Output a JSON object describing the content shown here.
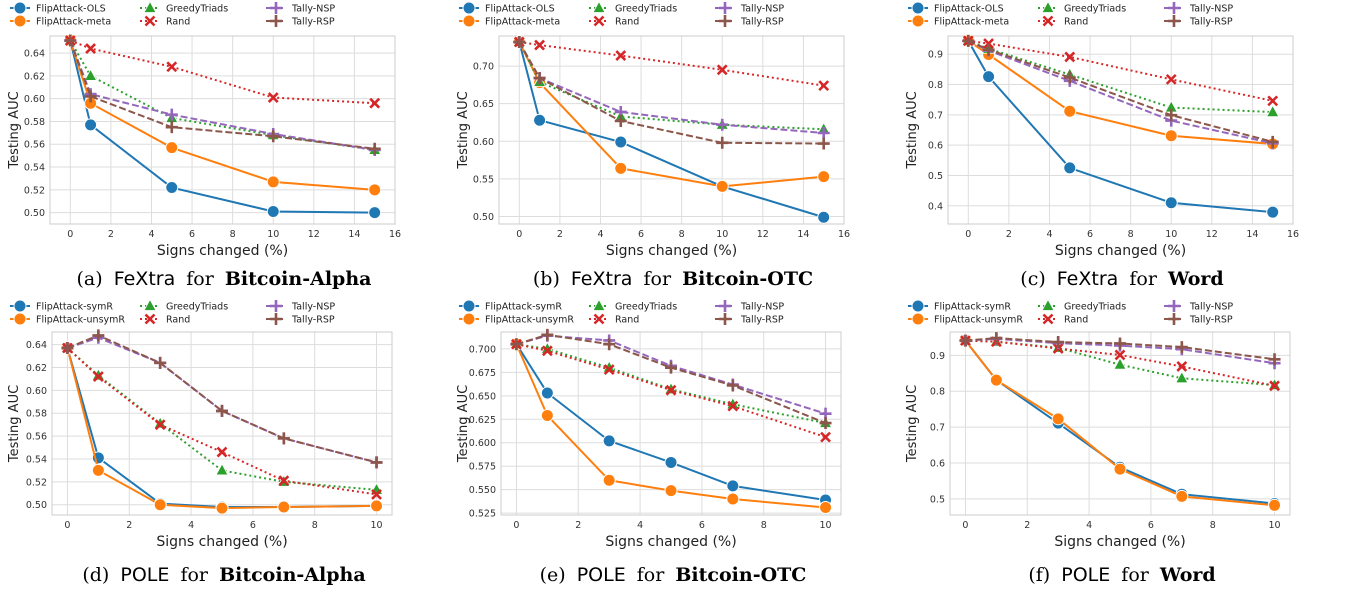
{
  "colors": {
    "FlipAttack-OLS": "#1f77b4",
    "FlipAttack-meta": "#ff7f0e",
    "FlipAttack-symR": "#1f77b4",
    "FlipAttack-unsymR": "#ff7f0e",
    "GreedyTriads": "#2ca02c",
    "Rand": "#d62728",
    "Tally-NSP": "#9467bd",
    "Tally-RSP": "#8c564b",
    "grid": "#dddddd",
    "axes_bg": "#ffffff"
  },
  "chart_data": [
    {
      "type": "line",
      "caption": {
        "label": "(a)",
        "method": "FeXtra",
        "for": "for",
        "dataset": "Bitcoin-Alpha"
      },
      "xlabel": "Signs changed (%)",
      "ylabel": "Testing AUC",
      "xlim": [
        -1,
        16
      ],
      "ylim": [
        0.49,
        0.655
      ],
      "xticks": [
        0,
        2,
        4,
        6,
        8,
        10,
        12,
        14,
        16
      ],
      "yticks": [
        0.5,
        0.52,
        0.54,
        0.56,
        0.58,
        0.6,
        0.62,
        0.64
      ],
      "ytick_labels": [
        "0.50",
        "0.52",
        "0.54",
        "0.56",
        "0.58",
        "0.60",
        "0.62",
        "0.64"
      ],
      "grid": true,
      "legend": "above",
      "series": [
        {
          "name": "FlipAttack-OLS",
          "marker": "circle",
          "dash": "solid",
          "x": [
            0,
            1,
            5,
            10,
            15
          ],
          "y": [
            0.651,
            0.577,
            0.522,
            0.501,
            0.5
          ]
        },
        {
          "name": "FlipAttack-meta",
          "marker": "circle",
          "dash": "solid",
          "x": [
            0,
            1,
            5,
            10,
            15
          ],
          "y": [
            0.651,
            0.596,
            0.557,
            0.527,
            0.52
          ]
        },
        {
          "name": "GreedyTriads",
          "marker": "triangle",
          "dash": "dotted",
          "x": [
            0,
            1,
            5,
            10,
            15
          ],
          "y": [
            0.651,
            0.62,
            0.583,
            0.568,
            0.555
          ]
        },
        {
          "name": "Rand",
          "marker": "x",
          "dash": "dotted",
          "x": [
            0,
            1,
            5,
            10,
            15
          ],
          "y": [
            0.651,
            0.644,
            0.628,
            0.601,
            0.596
          ]
        },
        {
          "name": "Tally-NSP",
          "marker": "plus",
          "dash": "dashed",
          "x": [
            0,
            1,
            5,
            10,
            15
          ],
          "y": [
            0.651,
            0.604,
            0.586,
            0.569,
            0.555
          ]
        },
        {
          "name": "Tally-RSP",
          "marker": "plus",
          "dash": "dashed",
          "x": [
            0,
            1,
            5,
            10,
            15
          ],
          "y": [
            0.651,
            0.602,
            0.575,
            0.567,
            0.556
          ]
        }
      ]
    },
    {
      "type": "line",
      "caption": {
        "label": "(b)",
        "method": "FeXtra",
        "for": "for",
        "dataset": "Bitcoin-OTC"
      },
      "xlabel": "Signs changed (%)",
      "ylabel": "Testing AUC",
      "xlim": [
        -1,
        16
      ],
      "ylim": [
        0.49,
        0.74
      ],
      "xticks": [
        0,
        2,
        4,
        6,
        8,
        10,
        12,
        14,
        16
      ],
      "yticks": [
        0.5,
        0.55,
        0.6,
        0.65,
        0.7
      ],
      "ytick_labels": [
        "0.50",
        "0.55",
        "0.60",
        "0.65",
        "0.70"
      ],
      "grid": true,
      "legend": "above",
      "series": [
        {
          "name": "FlipAttack-OLS",
          "marker": "circle",
          "dash": "solid",
          "x": [
            0,
            1,
            5,
            10,
            15
          ],
          "y": [
            0.732,
            0.628,
            0.599,
            0.54,
            0.499
          ]
        },
        {
          "name": "FlipAttack-meta",
          "marker": "circle",
          "dash": "solid",
          "x": [
            0,
            1,
            5,
            10,
            15
          ],
          "y": [
            0.732,
            0.678,
            0.564,
            0.54,
            0.553
          ]
        },
        {
          "name": "GreedyTriads",
          "marker": "triangle",
          "dash": "dotted",
          "x": [
            0,
            1,
            5,
            10,
            15
          ],
          "y": [
            0.732,
            0.679,
            0.633,
            0.622,
            0.616
          ]
        },
        {
          "name": "Rand",
          "marker": "x",
          "dash": "dotted",
          "x": [
            0,
            1,
            5,
            10,
            15
          ],
          "y": [
            0.732,
            0.728,
            0.714,
            0.695,
            0.674
          ]
        },
        {
          "name": "Tally-NSP",
          "marker": "plus",
          "dash": "dashed",
          "x": [
            0,
            1,
            5,
            10,
            15
          ],
          "y": [
            0.732,
            0.684,
            0.639,
            0.622,
            0.611
          ]
        },
        {
          "name": "Tally-RSP",
          "marker": "plus",
          "dash": "dashed",
          "x": [
            0,
            1,
            5,
            10,
            15
          ],
          "y": [
            0.732,
            0.684,
            0.627,
            0.598,
            0.597
          ]
        }
      ]
    },
    {
      "type": "line",
      "caption": {
        "label": "(c)",
        "method": "FeXtra",
        "for": "for",
        "dataset": "Word"
      },
      "xlabel": "Signs changed (%)",
      "ylabel": "Testing AUC",
      "xlim": [
        -1,
        16
      ],
      "ylim": [
        0.34,
        0.96
      ],
      "xticks": [
        0,
        2,
        4,
        6,
        8,
        10,
        12,
        14,
        16
      ],
      "yticks": [
        0.4,
        0.5,
        0.6,
        0.7,
        0.8,
        0.9
      ],
      "ytick_labels": [
        "0.4",
        "0.5",
        "0.6",
        "0.7",
        "0.8",
        "0.9"
      ],
      "grid": true,
      "legend": "above",
      "series": [
        {
          "name": "FlipAttack-OLS",
          "marker": "circle",
          "dash": "solid",
          "x": [
            0,
            1,
            5,
            10,
            15
          ],
          "y": [
            0.944,
            0.826,
            0.525,
            0.41,
            0.379
          ]
        },
        {
          "name": "FlipAttack-meta",
          "marker": "circle",
          "dash": "solid",
          "x": [
            0,
            1,
            5,
            10,
            15
          ],
          "y": [
            0.944,
            0.899,
            0.712,
            0.631,
            0.604
          ]
        },
        {
          "name": "GreedyTriads",
          "marker": "triangle",
          "dash": "dotted",
          "x": [
            0,
            1,
            5,
            10,
            15
          ],
          "y": [
            0.944,
            0.918,
            0.833,
            0.724,
            0.709
          ]
        },
        {
          "name": "Rand",
          "marker": "x",
          "dash": "dotted",
          "x": [
            0,
            1,
            5,
            10,
            15
          ],
          "y": [
            0.944,
            0.935,
            0.891,
            0.817,
            0.746
          ]
        },
        {
          "name": "Tally-NSP",
          "marker": "plus",
          "dash": "dashed",
          "x": [
            0,
            1,
            5,
            10,
            15
          ],
          "y": [
            0.944,
            0.912,
            0.812,
            0.681,
            0.606
          ]
        },
        {
          "name": "Tally-RSP",
          "marker": "plus",
          "dash": "dashed",
          "x": [
            0,
            1,
            5,
            10,
            15
          ],
          "y": [
            0.944,
            0.915,
            0.823,
            0.699,
            0.611
          ]
        }
      ]
    },
    {
      "type": "line",
      "caption": {
        "label": "(d)",
        "method": "POLE",
        "for": "for",
        "dataset": "Bitcoin-Alpha"
      },
      "xlabel": "Signs changed (%)",
      "ylabel": "Testing AUC",
      "xlim": [
        -0.5,
        10.5
      ],
      "ylim": [
        0.491,
        0.651
      ],
      "xticks": [
        0,
        2,
        4,
        6,
        8,
        10
      ],
      "yticks": [
        0.5,
        0.52,
        0.54,
        0.56,
        0.58,
        0.6,
        0.62,
        0.64
      ],
      "ytick_labels": [
        "0.50",
        "0.52",
        "0.54",
        "0.56",
        "0.58",
        "0.60",
        "0.62",
        "0.64"
      ],
      "grid": true,
      "legend": "above",
      "series": [
        {
          "name": "FlipAttack-symR",
          "marker": "circle",
          "dash": "solid",
          "x": [
            0,
            1,
            3,
            5,
            7,
            10
          ],
          "y": [
            0.637,
            0.541,
            0.501,
            0.498,
            0.498,
            0.499
          ]
        },
        {
          "name": "FlipAttack-unsymR",
          "marker": "circle",
          "dash": "solid",
          "x": [
            0,
            1,
            3,
            5,
            7,
            10
          ],
          "y": [
            0.637,
            0.53,
            0.5,
            0.497,
            0.498,
            0.499
          ]
        },
        {
          "name": "GreedyTriads",
          "marker": "triangle",
          "dash": "dotted",
          "x": [
            0,
            1,
            3,
            5,
            7,
            10
          ],
          "y": [
            0.637,
            0.613,
            0.571,
            0.53,
            0.52,
            0.513
          ]
        },
        {
          "name": "Rand",
          "marker": "x",
          "dash": "dotted",
          "x": [
            0,
            1,
            3,
            5,
            7,
            10
          ],
          "y": [
            0.637,
            0.612,
            0.57,
            0.546,
            0.521,
            0.509
          ]
        },
        {
          "name": "Tally-NSP",
          "marker": "plus",
          "dash": "dashed",
          "x": [
            0,
            1,
            3,
            5,
            7,
            10
          ],
          "y": [
            0.637,
            0.646,
            0.624,
            0.582,
            0.558,
            0.537
          ]
        },
        {
          "name": "Tally-RSP",
          "marker": "plus",
          "dash": "dashed",
          "x": [
            0,
            1,
            3,
            5,
            7,
            10
          ],
          "y": [
            0.637,
            0.648,
            0.624,
            0.582,
            0.558,
            0.537
          ]
        }
      ]
    },
    {
      "type": "line",
      "caption": {
        "label": "(e)",
        "method": "POLE",
        "for": "for",
        "dataset": "Bitcoin-OTC"
      },
      "xlabel": "Signs changed (%)",
      "ylabel": "Testing AUC",
      "xlim": [
        -0.5,
        10.5
      ],
      "ylim": [
        0.523,
        0.718
      ],
      "xticks": [
        0,
        2,
        4,
        6,
        8,
        10
      ],
      "yticks": [
        0.525,
        0.55,
        0.575,
        0.6,
        0.625,
        0.65,
        0.675,
        0.7
      ],
      "ytick_labels": [
        "0.525",
        "0.550",
        "0.575",
        "0.600",
        "0.625",
        "0.650",
        "0.675",
        "0.700"
      ],
      "grid": true,
      "legend": "above",
      "series": [
        {
          "name": "FlipAttack-symR",
          "marker": "circle",
          "dash": "solid",
          "x": [
            0,
            1,
            3,
            5,
            7,
            10
          ],
          "y": [
            0.705,
            0.653,
            0.602,
            0.579,
            0.554,
            0.539
          ]
        },
        {
          "name": "FlipAttack-unsymR",
          "marker": "circle",
          "dash": "solid",
          "x": [
            0,
            1,
            3,
            5,
            7,
            10
          ],
          "y": [
            0.705,
            0.629,
            0.56,
            0.549,
            0.54,
            0.531
          ]
        },
        {
          "name": "GreedyTriads",
          "marker": "triangle",
          "dash": "dotted",
          "x": [
            0,
            1,
            3,
            5,
            7,
            10
          ],
          "y": [
            0.705,
            0.7,
            0.68,
            0.657,
            0.641,
            0.621
          ]
        },
        {
          "name": "Rand",
          "marker": "x",
          "dash": "dotted",
          "x": [
            0,
            1,
            3,
            5,
            7,
            10
          ],
          "y": [
            0.705,
            0.698,
            0.678,
            0.656,
            0.639,
            0.606
          ]
        },
        {
          "name": "Tally-NSP",
          "marker": "plus",
          "dash": "dashed",
          "x": [
            0,
            1,
            3,
            5,
            7,
            10
          ],
          "y": [
            0.705,
            0.714,
            0.709,
            0.682,
            0.662,
            0.631
          ]
        },
        {
          "name": "Tally-RSP",
          "marker": "plus",
          "dash": "dashed",
          "x": [
            0,
            1,
            3,
            5,
            7,
            10
          ],
          "y": [
            0.705,
            0.715,
            0.705,
            0.68,
            0.661,
            0.621
          ]
        }
      ]
    },
    {
      "type": "line",
      "caption": {
        "label": "(f)",
        "method": "POLE",
        "for": "for",
        "dataset": "Word"
      },
      "xlabel": "Signs changed (%)",
      "ylabel": "Testing AUC",
      "xlim": [
        -0.5,
        10.5
      ],
      "ylim": [
        0.455,
        0.965
      ],
      "xticks": [
        0,
        2,
        4,
        6,
        8,
        10
      ],
      "yticks": [
        0.5,
        0.6,
        0.7,
        0.8,
        0.9
      ],
      "ytick_labels": [
        "0.5",
        "0.6",
        "0.7",
        "0.8",
        "0.9"
      ],
      "grid": true,
      "legend": "above",
      "series": [
        {
          "name": "FlipAttack-symR",
          "marker": "circle",
          "dash": "solid",
          "x": [
            0,
            1,
            3,
            5,
            7,
            10
          ],
          "y": [
            0.941,
            0.831,
            0.711,
            0.588,
            0.513,
            0.487
          ]
        },
        {
          "name": "FlipAttack-unsymR",
          "marker": "circle",
          "dash": "solid",
          "x": [
            0,
            1,
            3,
            5,
            7,
            10
          ],
          "y": [
            0.941,
            0.831,
            0.723,
            0.583,
            0.507,
            0.482
          ]
        },
        {
          "name": "GreedyTriads",
          "marker": "triangle",
          "dash": "dotted",
          "x": [
            0,
            1,
            3,
            5,
            7,
            10
          ],
          "y": [
            0.941,
            0.938,
            0.921,
            0.874,
            0.836,
            0.817
          ]
        },
        {
          "name": "Rand",
          "marker": "x",
          "dash": "dotted",
          "x": [
            0,
            1,
            3,
            5,
            7,
            10
          ],
          "y": [
            0.941,
            0.938,
            0.919,
            0.901,
            0.869,
            0.815
          ]
        },
        {
          "name": "Tally-NSP",
          "marker": "plus",
          "dash": "dashed",
          "x": [
            0,
            1,
            3,
            5,
            7,
            10
          ],
          "y": [
            0.941,
            0.946,
            0.934,
            0.927,
            0.917,
            0.878
          ]
        },
        {
          "name": "Tally-RSP",
          "marker": "plus",
          "dash": "dashed",
          "x": [
            0,
            1,
            3,
            5,
            7,
            10
          ],
          "y": [
            0.941,
            0.948,
            0.937,
            0.933,
            0.923,
            0.889
          ]
        }
      ]
    }
  ]
}
